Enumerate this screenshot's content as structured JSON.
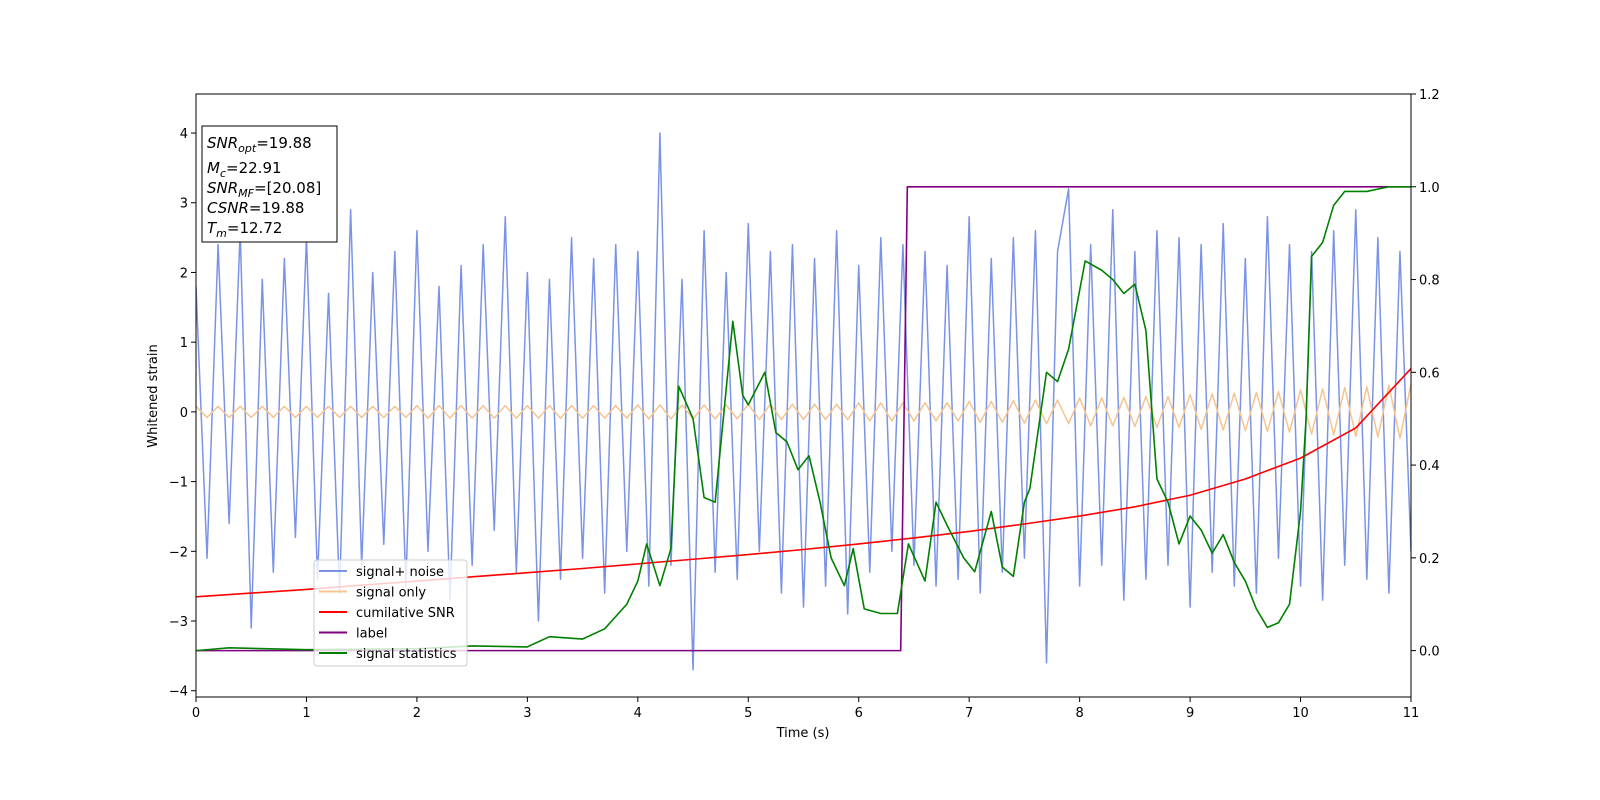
{
  "chart_data": {
    "type": "line",
    "xlabel": "Time (s)",
    "ylabel": "Whitened strain",
    "xlim": [
      0,
      11
    ],
    "xticks": [
      0,
      1,
      2,
      3,
      4,
      5,
      6,
      7,
      8,
      9,
      10,
      11
    ],
    "ylim": [
      -4.09,
      4.56
    ],
    "yticks": [
      {
        "value": -4,
        "label": "−4"
      },
      {
        "value": -3,
        "label": "−3"
      },
      {
        "value": -2,
        "label": "−2"
      },
      {
        "value": -1,
        "label": "−1"
      },
      0,
      1,
      2,
      3,
      4
    ],
    "y2lim": [
      -0.1,
      1.2
    ],
    "y2ticks": [
      {
        "value": 0,
        "label": "0.0"
      },
      {
        "value": 0.2,
        "label": "0.2"
      },
      {
        "value": 0.4,
        "label": "0.4"
      },
      {
        "value": 0.6,
        "label": "0.6"
      },
      {
        "value": 0.8,
        "label": "0.8"
      },
      {
        "value": 1,
        "label": "1.0"
      },
      {
        "value": 1.2,
        "label": "1.2"
      }
    ],
    "legend": "lower left",
    "annotation": [
      {
        "name": "SNR",
        "sub": "opt",
        "text": "=19.88"
      },
      {
        "name": "M",
        "sub": "c",
        "text": "=22.91"
      },
      {
        "name": "SNR",
        "sub": "MF",
        "text": "=[20.08]"
      },
      {
        "name": "CSNR",
        "text": "=19.88"
      },
      {
        "name": "T",
        "sub": "m",
        "text": "=12.72"
      }
    ],
    "x": [
      0,
      0.1,
      0.2,
      0.3,
      0.4,
      0.5,
      0.6,
      0.7,
      0.8,
      0.9,
      1,
      1.1,
      1.2,
      1.3,
      1.4,
      1.5,
      1.6,
      1.7,
      1.8,
      1.9,
      2,
      2.1,
      2.2,
      2.3,
      2.4,
      2.5,
      2.6,
      2.7,
      2.8,
      2.9,
      3,
      3.1,
      3.2,
      3.3,
      3.4,
      3.5,
      3.6,
      3.7,
      3.8,
      3.9,
      4,
      4.1,
      4.2,
      4.3,
      4.4,
      4.5,
      4.6,
      4.7,
      4.8,
      4.9,
      5,
      5.1,
      5.2,
      5.3,
      5.4,
      5.5,
      5.6,
      5.7,
      5.8,
      5.9,
      6,
      6.1,
      6.2,
      6.3,
      6.4,
      6.5,
      6.6,
      6.7,
      6.8,
      6.9,
      7,
      7.1,
      7.2,
      7.3,
      7.4,
      7.5,
      7.6,
      7.7,
      7.8,
      7.9,
      8,
      8.1,
      8.2,
      8.3,
      8.4,
      8.5,
      8.6,
      8.7,
      8.8,
      8.9,
      9,
      9.1,
      9.2,
      9.3,
      9.4,
      9.5,
      9.6,
      9.7,
      9.8,
      9.9,
      10,
      10.1,
      10.2,
      10.3,
      10.4,
      10.5,
      10.6,
      10.7,
      10.8,
      10.9,
      11
    ],
    "series": [
      {
        "name": "signal+ noise",
        "color": "#7b93e6",
        "width": 1.5,
        "values": [
          1.8,
          -2.1,
          2.4,
          -1.6,
          2.6,
          -3.1,
          1.9,
          -2.3,
          2.2,
          -1.8,
          2.5,
          -2.4,
          1.7,
          -2.6,
          2.9,
          -2.2,
          2.0,
          -1.9,
          2.3,
          -2.5,
          2.6,
          -2.0,
          1.8,
          -2.7,
          2.1,
          -2.2,
          2.4,
          -1.7,
          2.8,
          -2.3,
          2.0,
          -3.0,
          1.9,
          -2.4,
          2.5,
          -2.1,
          2.2,
          -2.6,
          2.4,
          -2.0,
          2.3,
          -2.5,
          4.0,
          -2.2,
          1.9,
          -3.7,
          2.6,
          -2.3,
          2.0,
          -2.4,
          2.7,
          -2.0,
          2.3,
          -2.6,
          2.4,
          -2.8,
          2.2,
          -2.5,
          2.6,
          -2.9,
          2.1,
          -2.3,
          2.5,
          -2.0,
          2.4,
          -2.2,
          2.3,
          -2.5,
          2.1,
          -2.4,
          2.8,
          -2.6,
          2.2,
          -2.3,
          2.5,
          -2.1,
          2.6,
          -3.6,
          2.3,
          3.2,
          -2.5,
          2.4,
          -2.2,
          2.9,
          -2.7,
          2.3,
          -2.4,
          2.6,
          -2.2,
          2.5,
          -2.8,
          2.4,
          -2.3,
          2.7,
          -2.5,
          2.2,
          -2.6,
          2.8,
          -2.1,
          2.4,
          -2.5,
          2.3,
          -2.7,
          2.6,
          -2.2,
          2.9,
          -2.4,
          2.5,
          -2.6,
          2.3,
          -2.0
        ]
      },
      {
        "name": "signal only",
        "color": "#f5c48f",
        "width": 1.5,
        "values": [
          0.08,
          -0.08,
          0.08,
          -0.08,
          0.08,
          -0.08,
          0.08,
          -0.08,
          0.08,
          -0.08,
          0.08,
          -0.08,
          0.08,
          -0.08,
          0.08,
          -0.08,
          0.08,
          -0.08,
          0.08,
          -0.08,
          0.09,
          -0.09,
          0.09,
          -0.09,
          0.09,
          -0.09,
          0.09,
          -0.09,
          0.09,
          -0.09,
          0.09,
          -0.09,
          0.09,
          -0.09,
          0.09,
          -0.09,
          0.09,
          -0.09,
          0.09,
          -0.09,
          0.1,
          -0.1,
          0.1,
          -0.1,
          0.1,
          -0.1,
          0.1,
          -0.1,
          0.1,
          -0.1,
          0.11,
          -0.11,
          0.11,
          -0.11,
          0.11,
          -0.11,
          0.11,
          -0.11,
          0.11,
          -0.11,
          0.13,
          -0.13,
          0.13,
          -0.13,
          0.13,
          -0.13,
          0.13,
          -0.13,
          0.13,
          -0.13,
          0.15,
          -0.15,
          0.15,
          -0.15,
          0.16,
          -0.16,
          0.17,
          -0.17,
          0.17,
          -0.17,
          0.2,
          -0.2,
          0.2,
          -0.2,
          0.21,
          -0.21,
          0.22,
          -0.22,
          0.22,
          -0.22,
          0.25,
          -0.25,
          0.26,
          -0.26,
          0.27,
          -0.27,
          0.28,
          -0.28,
          0.29,
          -0.29,
          0.32,
          -0.32,
          0.33,
          -0.33,
          0.35,
          -0.35,
          0.36,
          -0.36,
          0.38,
          -0.38,
          0.4
        ]
      },
      {
        "name": "cumilative SNR",
        "color": "#ff0000",
        "width": 1.6,
        "axis": "y2",
        "x": [
          0,
          0.5,
          1,
          1.5,
          2,
          2.5,
          3,
          3.5,
          4,
          4.5,
          5,
          5.5,
          6,
          6.5,
          7,
          7.5,
          8,
          8.5,
          9,
          9.5,
          10,
          10.5,
          11
        ],
        "values": [
          0.116,
          0.124,
          0.132,
          0.141,
          0.15,
          0.159,
          0.168,
          0.177,
          0.187,
          0.197,
          0.207,
          0.218,
          0.23,
          0.243,
          0.257,
          0.273,
          0.29,
          0.31,
          0.335,
          0.37,
          0.415,
          0.48,
          0.608
        ]
      },
      {
        "name": "label",
        "color": "#800080",
        "width": 1.6,
        "axis": "y2",
        "x": [
          0,
          6.38,
          6.44,
          11
        ],
        "values": [
          0,
          0,
          1,
          1
        ]
      },
      {
        "name": "signal statistics",
        "color": "#008000",
        "width": 1.6,
        "axis": "y2",
        "x": [
          0,
          0.3,
          1,
          2,
          2.5,
          3,
          3.2,
          3.5,
          3.7,
          3.9,
          4.0,
          4.08,
          4.2,
          4.3,
          4.37,
          4.5,
          4.6,
          4.7,
          4.86,
          4.95,
          5.0,
          5.15,
          5.25,
          5.35,
          5.45,
          5.55,
          5.65,
          5.75,
          5.87,
          5.95,
          6.05,
          6.2,
          6.35,
          6.45,
          6.6,
          6.7,
          6.8,
          6.95,
          7.05,
          7.2,
          7.3,
          7.4,
          7.5,
          7.55,
          7.7,
          7.8,
          7.9,
          8.05,
          8.2,
          8.3,
          8.4,
          8.5,
          8.6,
          8.7,
          8.8,
          8.9,
          9.0,
          9.1,
          9.2,
          9.3,
          9.4,
          9.5,
          9.6,
          9.7,
          9.8,
          9.9,
          10.0,
          10.05,
          10.1,
          10.2,
          10.3,
          10.4,
          10.6,
          10.8,
          11.0
        ],
        "values": [
          0,
          0.006,
          0.002,
          0.004,
          0.01,
          0.008,
          0.03,
          0.025,
          0.047,
          0.1,
          0.15,
          0.23,
          0.14,
          0.22,
          0.57,
          0.5,
          0.33,
          0.32,
          0.71,
          0.55,
          0.53,
          0.6,
          0.47,
          0.45,
          0.39,
          0.42,
          0.32,
          0.2,
          0.14,
          0.22,
          0.09,
          0.08,
          0.08,
          0.23,
          0.15,
          0.32,
          0.27,
          0.2,
          0.17,
          0.3,
          0.18,
          0.16,
          0.32,
          0.35,
          0.6,
          0.58,
          0.65,
          0.84,
          0.82,
          0.8,
          0.77,
          0.79,
          0.69,
          0.37,
          0.32,
          0.23,
          0.29,
          0.26,
          0.21,
          0.25,
          0.19,
          0.15,
          0.09,
          0.05,
          0.06,
          0.1,
          0.3,
          0.5,
          0.85,
          0.88,
          0.96,
          0.99,
          0.99,
          1.0,
          1.0
        ]
      }
    ]
  }
}
